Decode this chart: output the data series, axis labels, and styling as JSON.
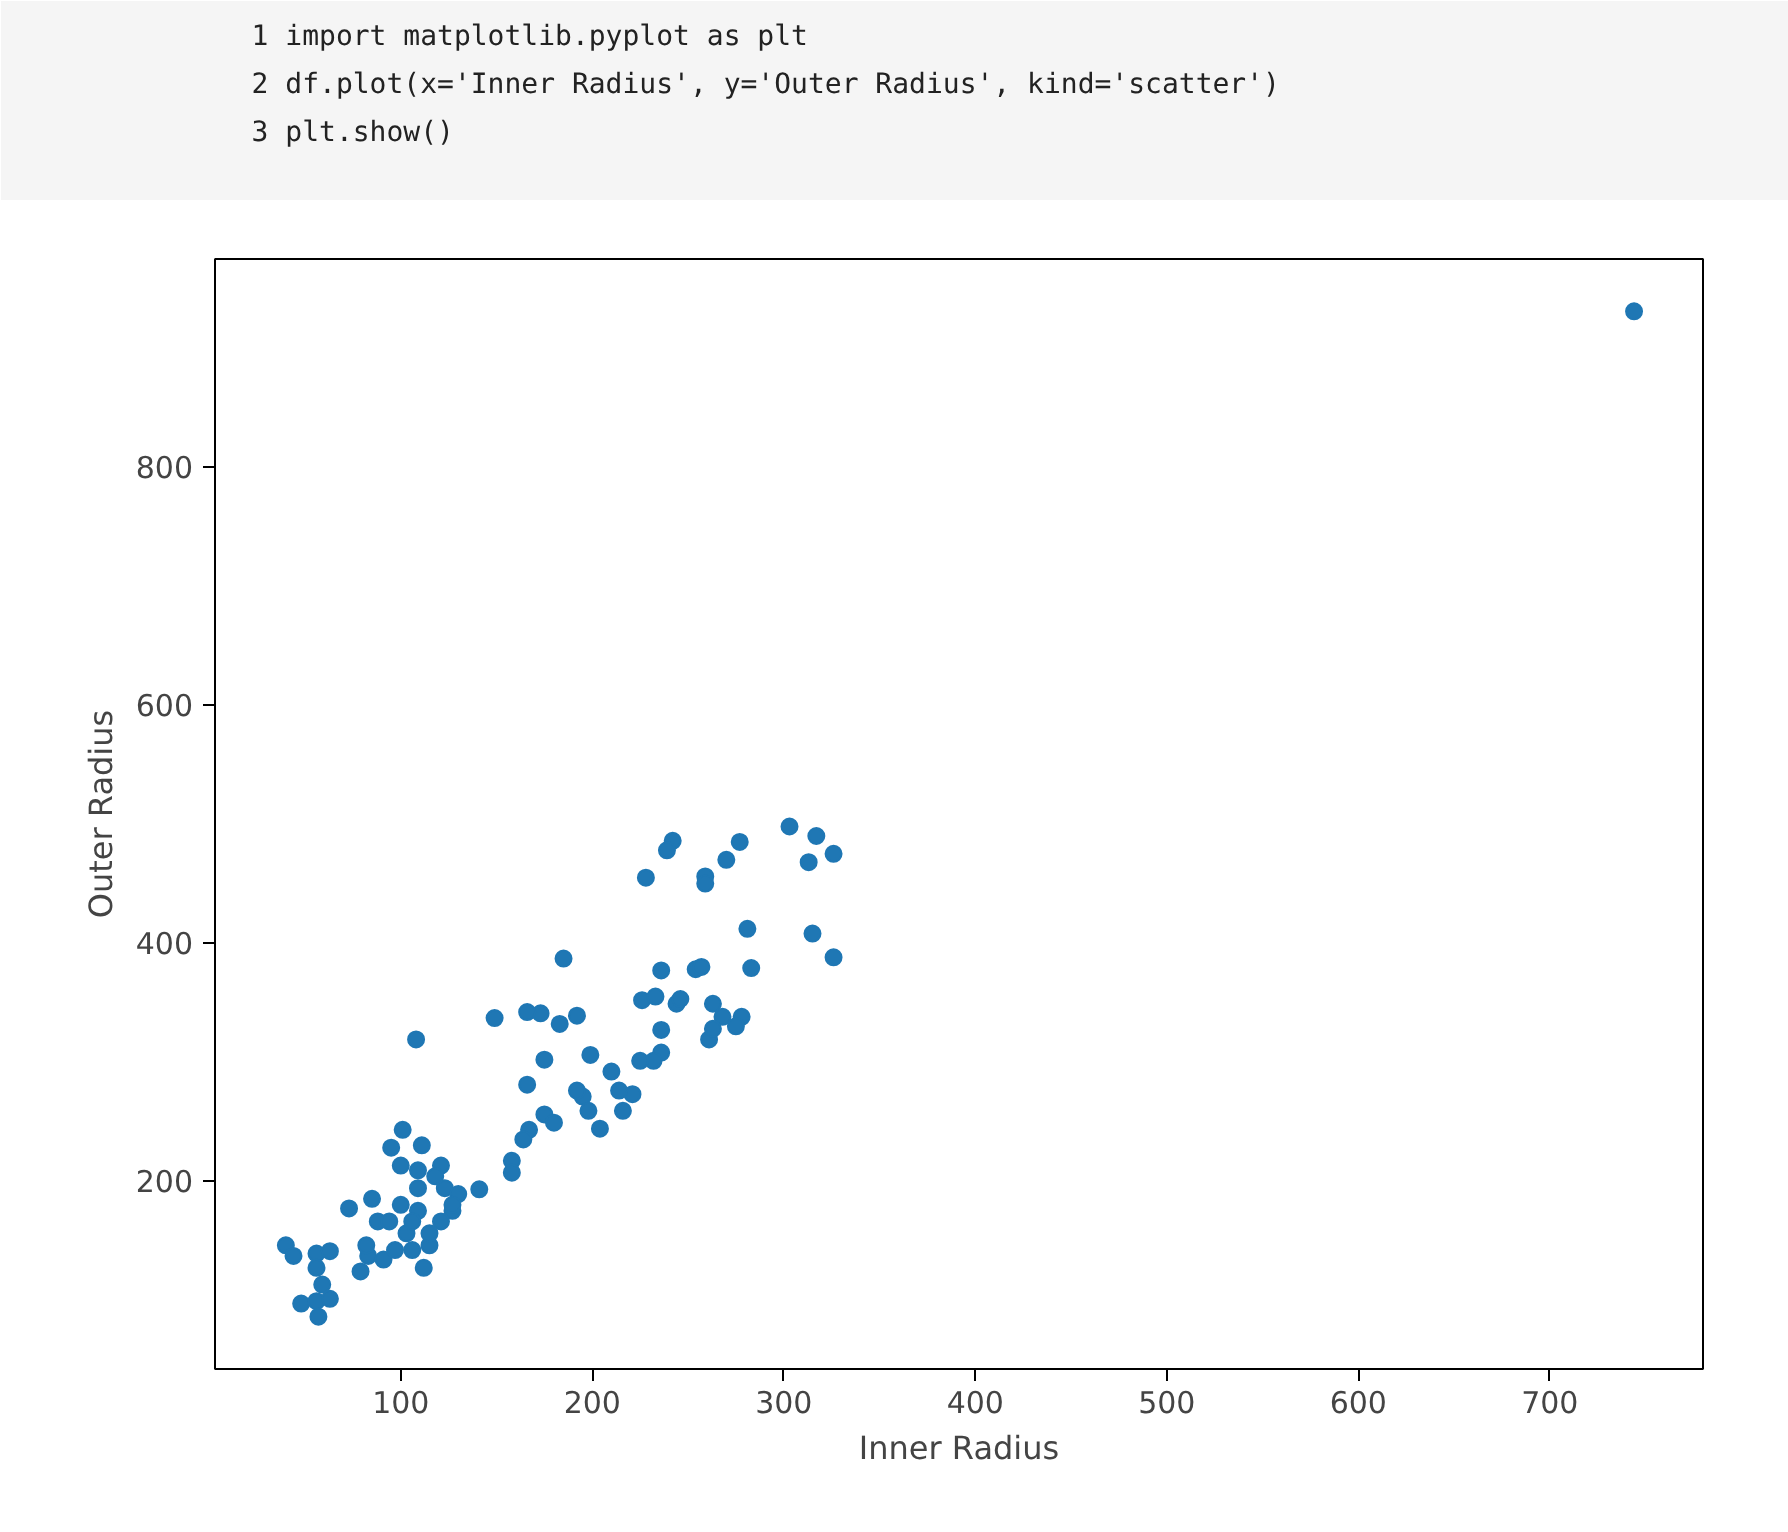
{
  "chart_data": {
    "type": "scatter",
    "xlabel": "Inner Radius",
    "ylabel": "Outer Radius",
    "color": "#1f77b4",
    "marker": "circle",
    "grid": false,
    "annotations": [
      "1 import matplotlib.pyplot as plt",
      "2 df.plot(x='Inner Radius', y='Outer Radius', kind='scatter')",
      "3 plt.show()"
    ],
    "xlim": [
      3,
      780
    ],
    "ylim": [
      42,
      975
    ],
    "xticks": [
      100,
      200,
      300,
      400,
      500,
      600,
      700
    ],
    "yticks": [
      200,
      400,
      600,
      800
    ],
    "x": [
      744,
      303,
      317,
      313,
      326,
      315,
      326,
      281,
      283,
      277,
      270,
      259,
      259,
      242,
      239,
      228,
      236,
      254,
      257,
      226,
      233,
      244,
      246,
      236,
      236,
      232,
      225,
      263,
      268,
      278,
      261,
      263,
      275,
      210,
      199,
      221,
      214,
      204,
      195,
      192,
      216,
      198,
      185,
      192,
      183,
      173,
      166,
      149,
      175,
      166,
      175,
      180,
      167,
      164,
      158,
      158,
      108,
      141,
      127,
      111,
      101,
      95,
      121,
      100,
      109,
      73,
      85,
      79,
      83,
      91,
      103,
      109,
      121,
      115,
      97,
      106,
      88,
      40,
      44,
      56,
      63,
      48,
      56,
      63,
      57,
      59,
      56,
      123,
      118,
      130,
      112,
      82,
      100,
      94,
      106,
      115,
      109,
      127
    ],
    "values": [
      931,
      498,
      490,
      468,
      475,
      408,
      388,
      412,
      379,
      485,
      470,
      456,
      450,
      486,
      478,
      455,
      377,
      378,
      380,
      352,
      355,
      349,
      353,
      327,
      308,
      301,
      301,
      349,
      338,
      338,
      319,
      328,
      330,
      292,
      306,
      273,
      276,
      244,
      271,
      276,
      259,
      259,
      387,
      339,
      332,
      341,
      342,
      337,
      302,
      281,
      256,
      249,
      243,
      235,
      217,
      207,
      319,
      193,
      175,
      230,
      243,
      228,
      213,
      213,
      194,
      177,
      185,
      124,
      137,
      134,
      156,
      175,
      166,
      146,
      142,
      142,
      166,
      146,
      137,
      139,
      141,
      97,
      99,
      101,
      86,
      113,
      127,
      194,
      204,
      189,
      127,
      146,
      180,
      166,
      166,
      156,
      209,
      180
    ]
  }
}
